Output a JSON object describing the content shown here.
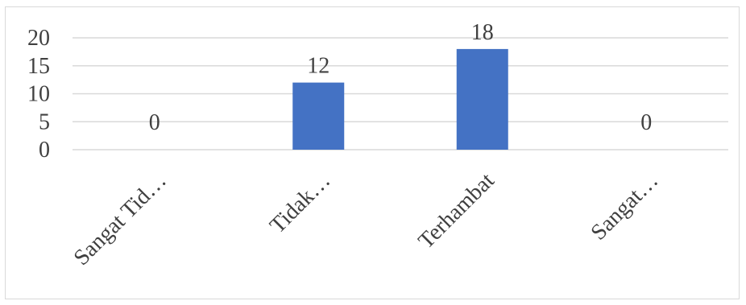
{
  "chart_data": {
    "type": "bar",
    "title": "",
    "xlabel": "",
    "ylabel": "",
    "categories": [
      "Sangat Tid…",
      "Tidak…",
      "Terhambat",
      "Sangat…"
    ],
    "values": [
      0,
      12,
      18,
      0
    ],
    "data_labels": [
      "0",
      "12",
      "18",
      "0"
    ],
    "yticks": [
      "0",
      "5",
      "10",
      "15",
      "20"
    ],
    "ylim": [
      0,
      20
    ],
    "grid": true,
    "legend": "none",
    "bar_color": "#4472c4",
    "gridline_color": "#d9d9d9"
  }
}
